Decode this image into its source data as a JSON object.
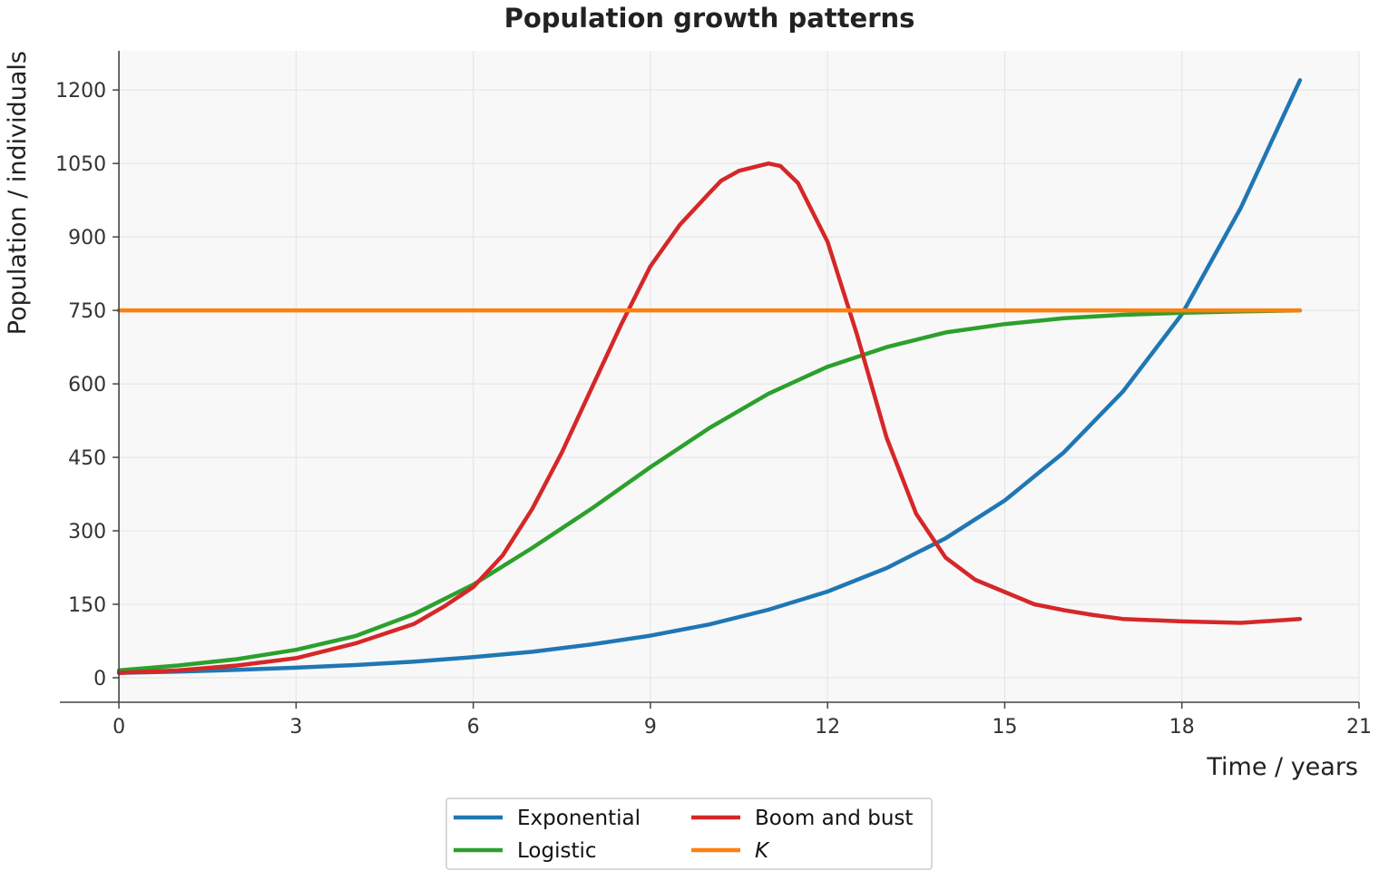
{
  "chart_data": {
    "type": "line",
    "title": "Population growth patterns",
    "xlabel": "Time / years",
    "ylabel": "Population / individuals",
    "xlim": [
      -1,
      21
    ],
    "ylim": [
      -50,
      1280
    ],
    "xticks": [
      0,
      3,
      6,
      9,
      12,
      15,
      18,
      21
    ],
    "yticks": [
      0,
      150,
      300,
      450,
      600,
      750,
      900,
      1050,
      1200
    ],
    "grid": true,
    "legend_position": "bottom-center",
    "series": [
      {
        "name": "Exponential",
        "color": "#1f77b4",
        "x": [
          0,
          1,
          2,
          3,
          4,
          5,
          6,
          7,
          8,
          9,
          10,
          11,
          12,
          13,
          14,
          15,
          16,
          17,
          18,
          19,
          20
        ],
        "y": [
          10,
          12.7,
          16.1,
          20.5,
          26,
          33,
          42,
          53,
          68,
          86,
          109,
          139,
          176,
          224,
          285,
          362,
          460,
          584,
          742,
          960,
          1220
        ]
      },
      {
        "name": "Logistic",
        "color": "#2ca02c",
        "x": [
          0,
          1,
          2,
          3,
          4,
          5,
          6,
          7,
          8,
          9,
          10,
          11,
          12,
          13,
          14,
          15,
          16,
          17,
          18,
          19,
          20
        ],
        "y": [
          15,
          25,
          38,
          57,
          85,
          130,
          190,
          265,
          345,
          430,
          510,
          580,
          635,
          675,
          705,
          722,
          734,
          741,
          745,
          748,
          750
        ]
      },
      {
        "name": "Boom and bust",
        "color": "#d62728",
        "x": [
          0,
          1,
          2,
          3,
          4,
          5,
          5.5,
          6,
          6.5,
          7,
          7.5,
          8,
          8.5,
          9,
          9.5,
          10,
          10.2,
          10.5,
          11,
          11.2,
          11.5,
          12,
          12.5,
          13,
          13.5,
          14,
          14.5,
          15,
          15.5,
          16,
          16.5,
          17,
          18,
          19,
          20
        ],
        "y": [
          10,
          15,
          25,
          40,
          70,
          110,
          145,
          185,
          250,
          345,
          460,
          590,
          720,
          840,
          925,
          990,
          1015,
          1035,
          1050,
          1045,
          1010,
          890,
          700,
          490,
          335,
          245,
          200,
          175,
          150,
          138,
          128,
          120,
          115,
          112,
          120
        ]
      },
      {
        "name": "K",
        "color": "#ff7f0e",
        "x": [
          0,
          20
        ],
        "y": [
          750,
          750
        ]
      }
    ]
  }
}
